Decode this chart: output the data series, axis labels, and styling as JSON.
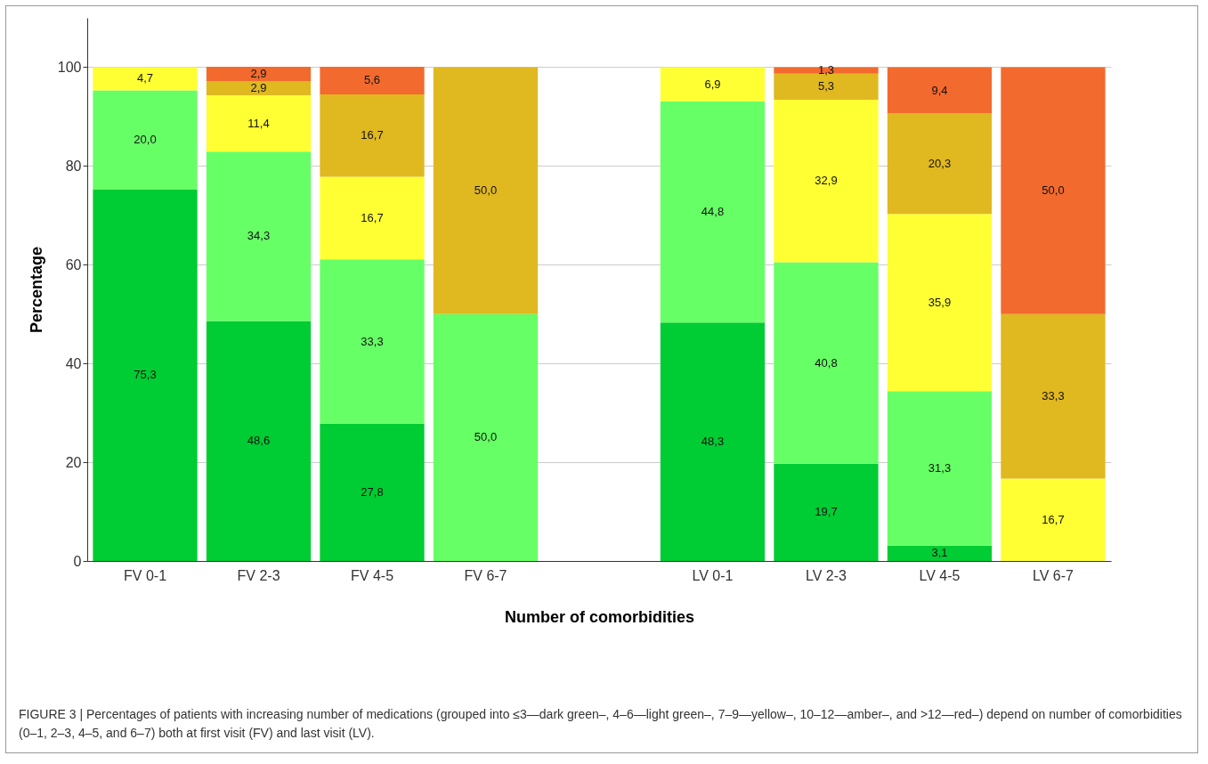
{
  "chart_data": {
    "type": "bar",
    "stacked": true,
    "xlabel": "Number of comorbidities",
    "ylabel": "Percentage",
    "categories": [
      "FV 0-1",
      "FV 2-3",
      "FV 4-5",
      "FV 6-7",
      null,
      "LV 0-1",
      "LV 2-3",
      "LV 4-5",
      "LV 6-7"
    ],
    "series": [
      {
        "color": "#00cc33",
        "values": [
          75.3,
          48.6,
          27.8,
          null,
          null,
          48.3,
          19.7,
          3.1,
          null
        ],
        "value_labels": [
          "75,3",
          "48,6",
          "27,8",
          null,
          null,
          "48,3",
          "19,7",
          "3,1",
          null
        ]
      },
      {
        "color": "#66ff66",
        "values": [
          20.0,
          34.3,
          33.3,
          50.0,
          null,
          44.8,
          40.8,
          31.3,
          null
        ],
        "value_labels": [
          "20,0",
          "34,3",
          "33,3",
          "50,0",
          null,
          "44,8",
          "40,8",
          "31,3",
          null
        ]
      },
      {
        "color": "#ffff33",
        "values": [
          4.7,
          11.4,
          16.7,
          null,
          null,
          6.9,
          32.9,
          35.9,
          16.7
        ],
        "value_labels": [
          "4,7",
          "11,4",
          "16,7",
          null,
          null,
          "6,9",
          "32,9",
          "35,9",
          "16,7"
        ]
      },
      {
        "color": "#e0b820",
        "values": [
          null,
          2.9,
          16.7,
          50.0,
          null,
          null,
          5.3,
          20.3,
          33.3
        ],
        "value_labels": [
          null,
          "2,9",
          "16,7",
          "50,0",
          null,
          null,
          "5,3",
          "20,3",
          "33,3"
        ]
      },
      {
        "color": "#f26a2e",
        "values": [
          null,
          2.9,
          5.6,
          null,
          null,
          null,
          1.3,
          9.4,
          50.0
        ],
        "value_labels": [
          null,
          "2,9",
          "5,6",
          null,
          null,
          null,
          "1,3",
          "9,4",
          "50,0"
        ]
      }
    ],
    "ylim": [
      0,
      110
    ],
    "yticks": [
      0,
      20,
      40,
      60,
      80,
      100
    ],
    "grid": "y",
    "legend": false,
    "annotations": [
      "FIGURE 3 | Percentages of patients with increasing number of medications (grouped into ≤3—dark green–, 4–6—light green–, 7–9—yellow–, 10–12—amber–, and >12—red–) depend on number of comorbidities (0–1, 2–3, 4–5, and 6–7) both at first visit (FV) and last visit (LV)."
    ]
  }
}
